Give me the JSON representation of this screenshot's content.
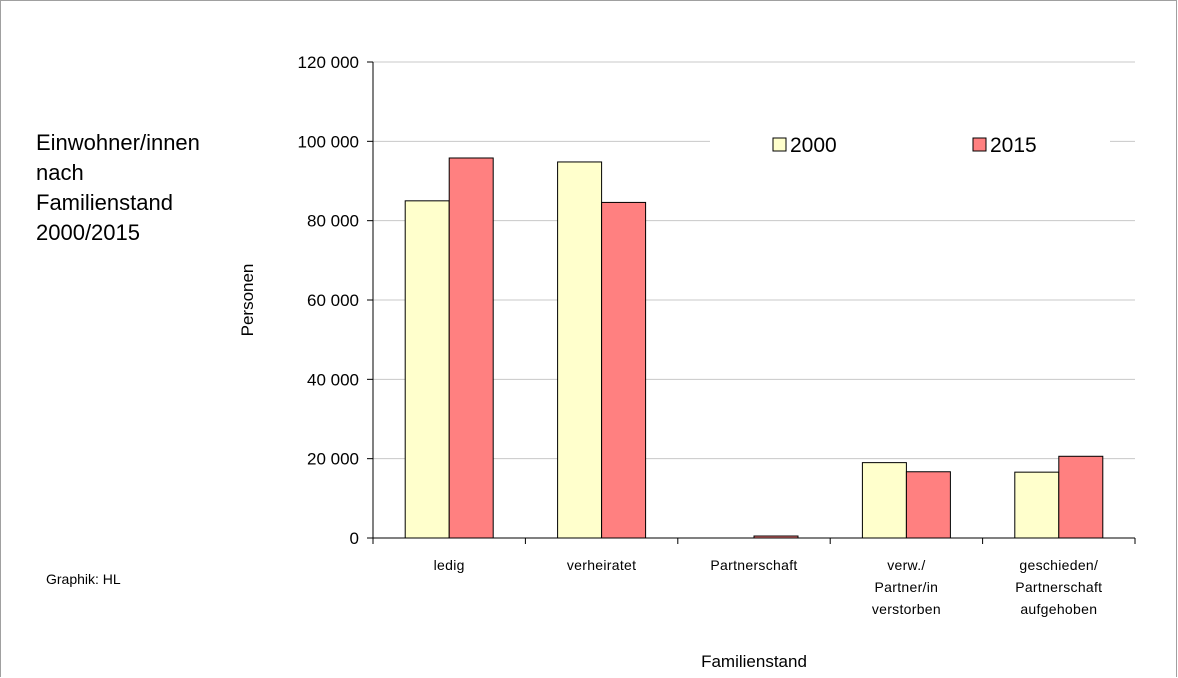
{
  "chart_data": {
    "type": "bar",
    "title": "Einwohner/innen\nnach\nFamilienstand\n2000/2015",
    "xlabel": "Familienstand",
    "ylabel": "Personen",
    "ylim": [
      0,
      120000
    ],
    "yticks": [
      0,
      20000,
      40000,
      60000,
      80000,
      100000,
      120000
    ],
    "ytick_labels": [
      "0",
      "20 000",
      "40 000",
      "60 000",
      "80 000",
      "100 000",
      "120 000"
    ],
    "categories": [
      [
        "ledig"
      ],
      [
        "verheiratet"
      ],
      [
        "Partnerschaft"
      ],
      [
        "verw./",
        "Partner/in",
        "verstorben"
      ],
      [
        "geschieden/",
        "Partnerschaft",
        "aufgehoben"
      ]
    ],
    "series": [
      {
        "name": "2000",
        "color": "#ffffcc",
        "values": [
          85000,
          94800,
          0,
          19000,
          16600
        ]
      },
      {
        "name": "2015",
        "color": "#ff8080",
        "values": [
          95800,
          84600,
          500,
          16700,
          20600
        ]
      }
    ],
    "legend_position": "top-right",
    "grid": true
  },
  "footer": {
    "credit": "Graphik: HL"
  }
}
